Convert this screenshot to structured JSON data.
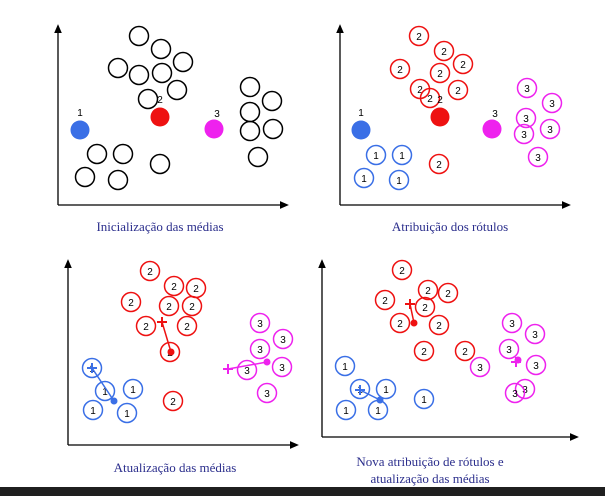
{
  "colors": {
    "axis": "#000000",
    "unassigned": "#000000",
    "cluster_1": "#3a6fe6",
    "cluster_2": "#ee1111",
    "cluster_3": "#ee22ee",
    "caption": "#2b2e8c",
    "bottom_bar": "#1f1f1f"
  },
  "captions": {
    "panel_1": "Inicialização das médias",
    "panel_2": "Atribuição dos rótulos",
    "panel_3": "Atualização das médias",
    "panel_4_line1": "Nova atribuição de rótulos e",
    "panel_4_line2": "atualização das médias"
  },
  "panels": [
    {
      "step": "initialization",
      "means": [
        {
          "label": "1",
          "cluster": 1
        },
        {
          "label": "2",
          "cluster": 2
        },
        {
          "label": "3",
          "cluster": 3
        }
      ],
      "points": [
        {
          "cluster": 0,
          "label": ""
        },
        {
          "cluster": 0,
          "label": ""
        },
        {
          "cluster": 0,
          "label": ""
        },
        {
          "cluster": 0,
          "label": ""
        },
        {
          "cluster": 0,
          "label": ""
        },
        {
          "cluster": 0,
          "label": ""
        },
        {
          "cluster": 0,
          "label": ""
        },
        {
          "cluster": 0,
          "label": ""
        },
        {
          "cluster": 0,
          "label": ""
        },
        {
          "cluster": 0,
          "label": ""
        },
        {
          "cluster": 0,
          "label": ""
        },
        {
          "cluster": 0,
          "label": ""
        },
        {
          "cluster": 0,
          "label": ""
        },
        {
          "cluster": 0,
          "label": ""
        },
        {
          "cluster": 0,
          "label": ""
        },
        {
          "cluster": 0,
          "label": ""
        },
        {
          "cluster": 0,
          "label": ""
        },
        {
          "cluster": 0,
          "label": ""
        },
        {
          "cluster": 0,
          "label": ""
        }
      ]
    },
    {
      "step": "label-assignment",
      "means": [
        {
          "label": "1",
          "cluster": 1
        },
        {
          "label": "2",
          "cluster": 2
        },
        {
          "label": "3",
          "cluster": 3
        }
      ],
      "points": [
        {
          "cluster": 2,
          "label": "2"
        },
        {
          "cluster": 2,
          "label": "2"
        },
        {
          "cluster": 2,
          "label": "2"
        },
        {
          "cluster": 2,
          "label": "2"
        },
        {
          "cluster": 2,
          "label": "2"
        },
        {
          "cluster": 2,
          "label": "2"
        },
        {
          "cluster": 2,
          "label": "2"
        },
        {
          "cluster": 2,
          "label": "2"
        },
        {
          "cluster": 3,
          "label": "3"
        },
        {
          "cluster": 3,
          "label": "3"
        },
        {
          "cluster": 3,
          "label": "3"
        },
        {
          "cluster": 3,
          "label": "3"
        },
        {
          "cluster": 3,
          "label": "3"
        },
        {
          "cluster": 3,
          "label": "3"
        },
        {
          "cluster": 1,
          "label": "1"
        },
        {
          "cluster": 1,
          "label": "1"
        },
        {
          "cluster": 1,
          "label": "1"
        },
        {
          "cluster": 1,
          "label": "1"
        },
        {
          "cluster": 2,
          "label": "2"
        }
      ]
    },
    {
      "step": "mean-update",
      "points": [
        {
          "cluster": 2,
          "label": "2"
        },
        {
          "cluster": 2,
          "label": "2"
        },
        {
          "cluster": 2,
          "label": "2"
        },
        {
          "cluster": 2,
          "label": "2"
        },
        {
          "cluster": 2,
          "label": "2"
        },
        {
          "cluster": 2,
          "label": "2"
        },
        {
          "cluster": 2,
          "label": "2"
        },
        {
          "cluster": 2,
          "label": "2"
        },
        {
          "cluster": 2,
          "label": "2"
        },
        {
          "cluster": 2,
          "label": "2"
        },
        {
          "cluster": 3,
          "label": "3"
        },
        {
          "cluster": 3,
          "label": "3"
        },
        {
          "cluster": 3,
          "label": "3"
        },
        {
          "cluster": 3,
          "label": "3"
        },
        {
          "cluster": 3,
          "label": "3"
        },
        {
          "cluster": 3,
          "label": "3"
        },
        {
          "cluster": 1,
          "label": "1"
        },
        {
          "cluster": 1,
          "label": "1"
        },
        {
          "cluster": 1,
          "label": "1"
        },
        {
          "cluster": 1,
          "label": "1"
        },
        {
          "cluster": 1,
          "label": "1"
        }
      ]
    },
    {
      "step": "reassignment-and-update",
      "points": [
        {
          "cluster": 2,
          "label": "2"
        },
        {
          "cluster": 2,
          "label": "2"
        },
        {
          "cluster": 2,
          "label": "2"
        },
        {
          "cluster": 2,
          "label": "2"
        },
        {
          "cluster": 2,
          "label": "2"
        },
        {
          "cluster": 2,
          "label": "2"
        },
        {
          "cluster": 2,
          "label": "2"
        },
        {
          "cluster": 2,
          "label": "2"
        },
        {
          "cluster": 2,
          "label": "2"
        },
        {
          "cluster": 3,
          "label": "3"
        },
        {
          "cluster": 3,
          "label": "3"
        },
        {
          "cluster": 3,
          "label": "3"
        },
        {
          "cluster": 3,
          "label": "3"
        },
        {
          "cluster": 3,
          "label": "3"
        },
        {
          "cluster": 3,
          "label": "3"
        },
        {
          "cluster": 3,
          "label": "3"
        },
        {
          "cluster": 1,
          "label": "1"
        },
        {
          "cluster": 1,
          "label": "1"
        },
        {
          "cluster": 1,
          "label": "1"
        },
        {
          "cluster": 1,
          "label": "1"
        },
        {
          "cluster": 1,
          "label": "1"
        },
        {
          "cluster": 1,
          "label": "1"
        }
      ]
    }
  ]
}
